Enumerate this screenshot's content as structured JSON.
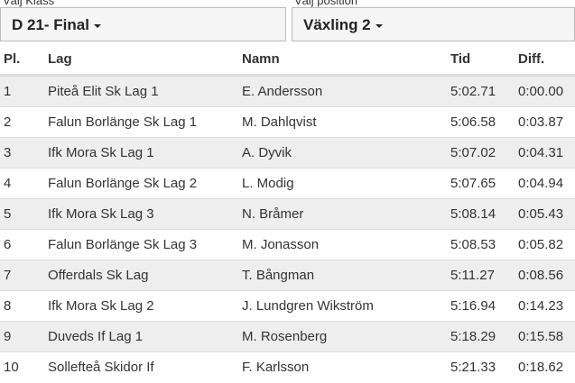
{
  "selectors": [
    {
      "label": "Välj Klass",
      "value": "D 21- Final"
    },
    {
      "label": "Välj position",
      "value": "Växling 2"
    }
  ],
  "table": {
    "header": [
      "Pl.",
      "Lag",
      "Namn",
      "Tid",
      "Diff."
    ],
    "rows": [
      [
        "1",
        "Piteå Elit Sk Lag 1",
        "E. Andersson",
        "5:02.71",
        "0:00.00"
      ],
      [
        "2",
        "Falun Borlänge Sk Lag 1",
        "M. Dahlqvist",
        "5:06.58",
        "0:03.87"
      ],
      [
        "3",
        "Ifk Mora Sk Lag 1",
        "A. Dyvik",
        "5:07.02",
        "0:04.31"
      ],
      [
        "4",
        "Falun Borlänge Sk Lag 2",
        "L. Modig",
        "5:07.65",
        "0:04.94"
      ],
      [
        "5",
        "Ifk Mora Sk Lag 3",
        "N. Bråmer",
        "5:08.14",
        "0:05.43"
      ],
      [
        "6",
        "Falun Borlänge Sk Lag 3",
        "M. Jonasson",
        "5:08.53",
        "0:05.82"
      ],
      [
        "7",
        "Offerdals Sk Lag",
        "T. Bångman",
        "5:11.27",
        "0:08.56"
      ],
      [
        "8",
        "Ifk Mora Sk Lag 2",
        "J. Lundgren Wikström",
        "5:16.94",
        "0:14.23"
      ],
      [
        "9",
        "Duveds If Lag 1",
        "M. Rosenberg",
        "5:18.29",
        "0:15.58"
      ],
      [
        "10",
        "Sollefteå Skidor If",
        "F. Karlsson",
        "5:21.33",
        "0:18.62"
      ]
    ]
  }
}
